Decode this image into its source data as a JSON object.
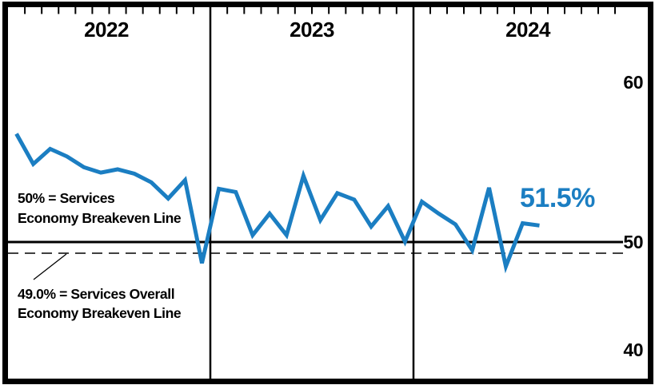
{
  "chart_data": {
    "type": "line",
    "frequency": "monthly",
    "ylim": [
      38,
      64
    ],
    "grid": "off",
    "legend": "none",
    "y_tick_labels": [
      "60",
      "50",
      "40"
    ],
    "y_ticks": [
      60,
      50,
      40
    ],
    "years": [
      {
        "label": "2022",
        "values": [
          60.0,
          57.2,
          58.6,
          57.9,
          56.9,
          56.4,
          56.7,
          56.3,
          55.5,
          54.0,
          55.7,
          48.0
        ]
      },
      {
        "label": "2023",
        "values": [
          54.9,
          54.6,
          50.6,
          52.6,
          50.6,
          56.1,
          52.0,
          54.5,
          53.9,
          51.4,
          53.3,
          50.0
        ]
      },
      {
        "label": "2024",
        "values": [
          53.7,
          52.6,
          51.6,
          49.2,
          55.0,
          47.7,
          51.7,
          51.5
        ]
      }
    ],
    "reference_lines": [
      {
        "value": 50.0,
        "style": "solid"
      },
      {
        "value": 49.0,
        "style": "dashed"
      }
    ],
    "annotations": {
      "breakeven50": {
        "line1": "50% = Services",
        "line2": "Economy Breakeven Line"
      },
      "breakeven49": {
        "line1": "49.0% = Services Overall",
        "line2": "Economy Breakeven Line"
      },
      "current_value": "51.5%"
    },
    "colors": {
      "line": "#1b7ec2",
      "current_value_text": "#1b7ec2",
      "frame": "#000000",
      "background": "#ffffff"
    }
  }
}
